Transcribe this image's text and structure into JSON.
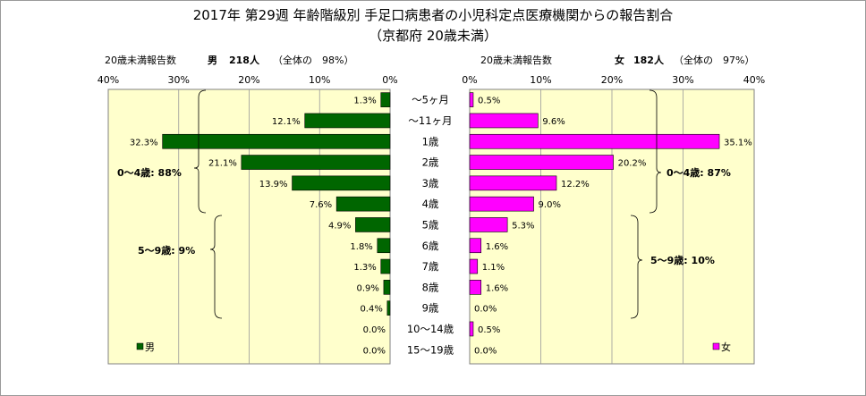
{
  "chart_data": {
    "type": "bar",
    "orientation": "horizontal-butterfly",
    "title": "2017年 第29週 年齢階級別 手足口病患者の小児科定点医療機関からの報告割合",
    "subtitle": "（京都府 20歳未満）",
    "categories": [
      "～5ヶ月",
      "～11ヶ月",
      "1歳",
      "2歳",
      "3歳",
      "4歳",
      "5歳",
      "6歳",
      "7歳",
      "8歳",
      "9歳",
      "10～14歳",
      "15～19歳"
    ],
    "series": [
      {
        "name": "男",
        "color": "#006600",
        "header": {
          "label": "20歳未満報告数",
          "sex": "男",
          "count": "218人",
          "share": "（全体の　98%）"
        },
        "values": [
          1.3,
          12.1,
          32.3,
          21.1,
          13.9,
          7.6,
          4.9,
          1.8,
          1.3,
          0.9,
          0.4,
          0.0,
          0.0
        ],
        "labels": [
          "1.3%",
          "12.1%",
          "32.3%",
          "21.1%",
          "13.9%",
          "7.6%",
          "4.9%",
          "1.8%",
          "1.3%",
          "0.9%",
          "0.4%",
          "0.0%",
          "0.0%"
        ],
        "xticks": [
          "40%",
          "30%",
          "20%",
          "10%",
          "0%"
        ],
        "groups": [
          {
            "label": "0～4歳: 88%"
          },
          {
            "label": "5～9歳: 9%"
          }
        ]
      },
      {
        "name": "女",
        "color": "#ff00ff",
        "header": {
          "label": "20歳未満報告数",
          "sex": "女",
          "count": "182人",
          "share": "（全体の　97%）"
        },
        "values": [
          0.5,
          9.6,
          35.1,
          20.2,
          12.2,
          9.0,
          5.3,
          1.6,
          1.1,
          1.6,
          0.0,
          0.5,
          0.0
        ],
        "labels": [
          "0.5%",
          "9.6%",
          "35.1%",
          "20.2%",
          "12.2%",
          "9.0%",
          "5.3%",
          "1.6%",
          "1.1%",
          "1.6%",
          "0.0%",
          "0.5%",
          "0.0%"
        ],
        "xticks": [
          "0%",
          "10%",
          "20%",
          "30%",
          "40%"
        ],
        "groups": [
          {
            "label": "0～4歳: 87%"
          },
          {
            "label": "5～9歳: 10%"
          }
        ]
      }
    ],
    "xlim": [
      0,
      40
    ],
    "plot_background": "#ffffcc",
    "grid": true
  }
}
